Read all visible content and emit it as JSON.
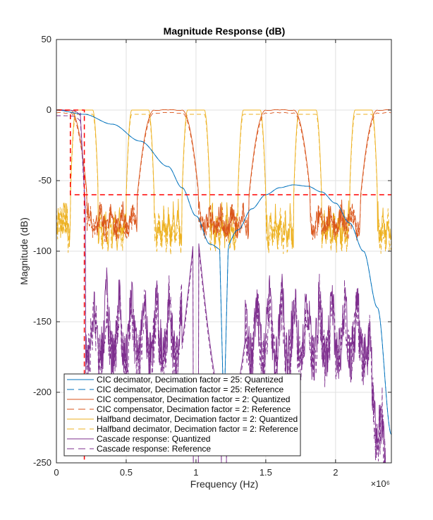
{
  "chart_data": {
    "type": "line",
    "title": "Magnitude Response (dB)",
    "xlabel": "Frequency (Hz)",
    "ylabel": "Magnitude (dB)",
    "x_exponent_label": "×10⁶",
    "xlim": [
      0,
      2.4
    ],
    "ylim": [
      -250,
      50
    ],
    "xticks": [
      0,
      0.5,
      1,
      1.5,
      2
    ],
    "xtick_labels": [
      "0",
      "0.5",
      "1",
      "1.5",
      "2"
    ],
    "yticks": [
      50,
      0,
      -50,
      -100,
      -150,
      -200,
      -250
    ],
    "ytick_labels": [
      "50",
      "0",
      "-50",
      "-100",
      "-150",
      "-200",
      "-250"
    ],
    "grid": true,
    "legend_position": "bottom-left",
    "colors": {
      "cic": "#0072BD",
      "compensator": "#D95319",
      "halfband": "#EDB120",
      "cascade": "#7E2F8E",
      "mask": "#FF0000"
    },
    "series": [
      {
        "name": "CIC decimator, Decimation factor = 25: Quantized",
        "style": "solid",
        "color": "#0072BD"
      },
      {
        "name": "CIC decimator, Decimation factor = 25: Reference",
        "style": "dashed",
        "color": "#0072BD"
      },
      {
        "name": "CIC compensator, Decimation factor = 2: Quantized",
        "style": "solid",
        "color": "#D95319"
      },
      {
        "name": "CIC compensator, Decimation factor = 2: Reference",
        "style": "dashed",
        "color": "#D95319"
      },
      {
        "name": "Halfband decimator, Decimation factor = 2: Quantized",
        "style": "solid",
        "color": "#EDB120"
      },
      {
        "name": "Halfband decimator, Decimation factor = 2: Reference",
        "style": "dashed",
        "color": "#EDB120"
      },
      {
        "name": "Cascade response: Quantized",
        "style": "solid",
        "color": "#7E2F8E"
      },
      {
        "name": "Cascade response: Reference",
        "style": "dashed",
        "color": "#7E2F8E"
      }
    ],
    "mask_lines": {
      "passband_edge_x": 0.1,
      "stopband_edge_x": 0.2,
      "stopband_level": -60,
      "passband_level": 0
    },
    "cic_response": {
      "x": [
        0,
        0.2,
        0.4,
        0.6,
        0.8,
        0.9,
        1.0,
        1.1,
        1.2,
        1.3,
        1.4,
        1.5,
        1.6,
        1.7,
        1.8,
        1.9,
        2.0,
        2.1,
        2.2,
        2.3,
        2.4
      ],
      "y": [
        0,
        -3,
        -10,
        -22,
        -40,
        -55,
        -75,
        -95,
        -100,
        -85,
        -70,
        -60,
        -55,
        -53,
        -54,
        -58,
        -66,
        -80,
        -100,
        -140,
        -230
      ]
    },
    "compensator_passband_centers": [
      0,
      0.8,
      1.6,
      2.4
    ],
    "compensator_null_centers": [
      0.4,
      1.2,
      2.0
    ],
    "halfband_passband_centers": [
      0.2,
      0.6,
      1.0,
      1.4,
      1.8,
      2.2
    ],
    "halfband_stopband_centers": [
      0.4,
      0.8,
      1.2,
      1.6,
      2.0
    ],
    "cascade_nulls": [
      1.0,
      1.2,
      2.4
    ],
    "cascade_stopband_level": -110
  }
}
